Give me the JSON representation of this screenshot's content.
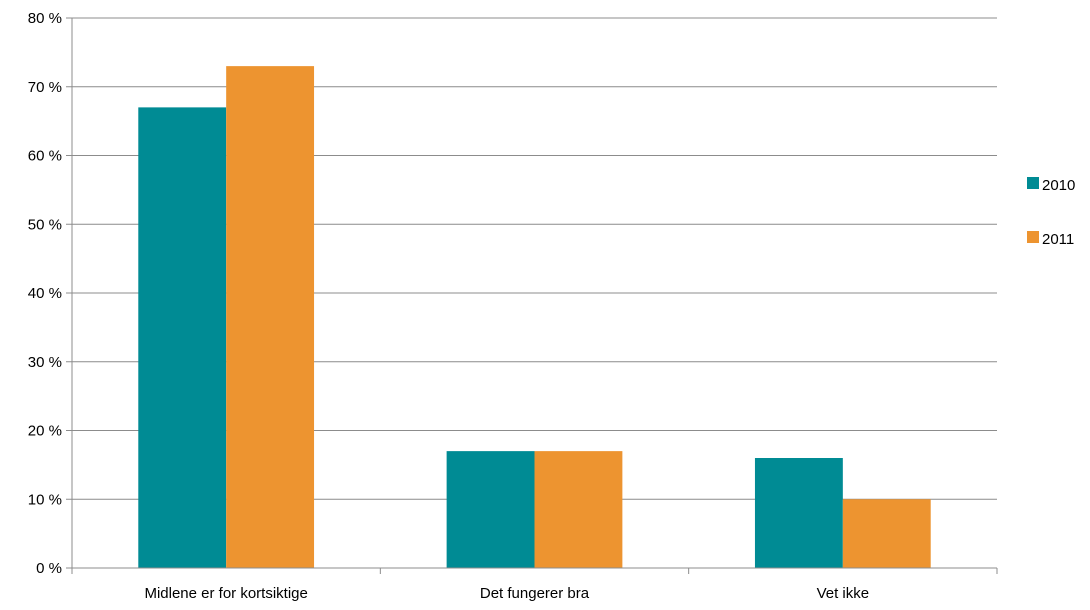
{
  "chart_data": {
    "type": "bar",
    "title": "",
    "xlabel": "",
    "ylabel": "",
    "categories": [
      "Midlene er for kortsiktige",
      "Det fungerer bra",
      "Vet ikke"
    ],
    "series": [
      {
        "name": "2010",
        "values": [
          67,
          17,
          16
        ],
        "color": "#008B94"
      },
      {
        "name": "2011",
        "values": [
          73,
          17,
          10
        ],
        "color": "#ED9430"
      }
    ],
    "ylim": [
      0,
      80
    ],
    "y_ticks": [
      "0 %",
      "10 %",
      "20 %",
      "30 %",
      "40 %",
      "50 %",
      "60 %",
      "70 %",
      "80 %"
    ],
    "grid": true,
    "legend_position": "right",
    "colors": {
      "grid": "#8C8C8C",
      "axis": "#8C8C8C"
    }
  }
}
